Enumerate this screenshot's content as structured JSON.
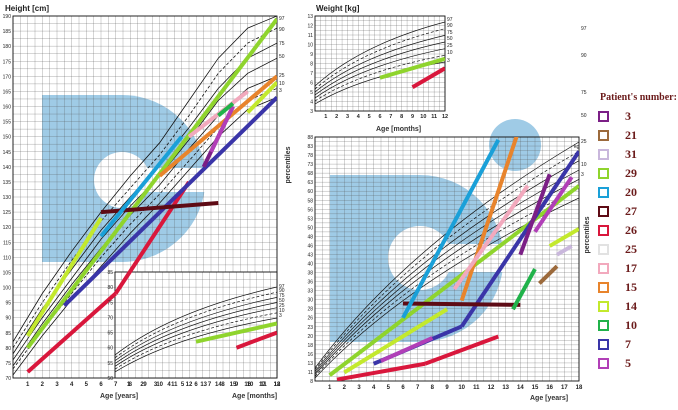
{
  "legend": {
    "title": "Patient's number:",
    "patients": [
      {
        "number": "3",
        "color": "#7b1f86"
      },
      {
        "number": "21",
        "color": "#9c6a3c"
      },
      {
        "number": "31",
        "color": "#c9b7dc"
      },
      {
        "number": "29",
        "color": "#8fd42d"
      },
      {
        "number": "20",
        "color": "#1aa0d8"
      },
      {
        "number": "27",
        "color": "#5e0b15"
      },
      {
        "number": "26",
        "color": "#d9173c"
      },
      {
        "number": "25",
        "color": "#e2e2e2"
      },
      {
        "number": "17",
        "color": "#f2a9bd"
      },
      {
        "number": "15",
        "color": "#e8842c"
      },
      {
        "number": "14",
        "color": "#c3e92d"
      },
      {
        "number": "10",
        "color": "#20b24a"
      },
      {
        "number": "7",
        "color": "#3a35a8"
      },
      {
        "number": "5",
        "color": "#b13fb7"
      }
    ]
  },
  "chart_data": [
    {
      "type": "line",
      "title": "Height [cm]",
      "xlabel": "Age [years]",
      "ylabel": "percentiles",
      "xlim": [
        0,
        18
      ],
      "ylim": [
        70,
        190
      ],
      "x_ticks": [
        1,
        2,
        3,
        4,
        5,
        6,
        7,
        8,
        9,
        10,
        11,
        12,
        13,
        14,
        15,
        16,
        17,
        18
      ],
      "y_ticks": [
        70,
        75,
        80,
        85,
        90,
        95,
        100,
        105,
        110,
        115,
        120,
        125,
        130,
        135,
        140,
        145,
        150,
        155,
        160,
        165,
        170,
        175,
        180,
        185,
        190
      ],
      "percentile_labels": [
        "97",
        "90",
        "75",
        "50",
        "25",
        "10",
        "3"
      ],
      "percentile_curves": [
        {
          "label": "97",
          "x": [
            0,
            2,
            4,
            6,
            8,
            10,
            12,
            14,
            16,
            18
          ],
          "y": [
            82,
            98,
            112,
            125,
            137,
            148,
            162,
            176,
            186,
            190
          ]
        },
        {
          "label": "90",
          "x": [
            0,
            2,
            4,
            6,
            8,
            10,
            12,
            14,
            16,
            18
          ],
          "y": [
            80,
            95,
            109,
            122,
            133,
            144,
            157,
            171,
            181,
            186
          ]
        },
        {
          "label": "75",
          "x": [
            0,
            2,
            4,
            6,
            8,
            10,
            12,
            14,
            16,
            18
          ],
          "y": [
            78,
            93,
            106,
            119,
            130,
            141,
            153,
            166,
            176,
            181
          ]
        },
        {
          "label": "50",
          "x": [
            0,
            2,
            4,
            6,
            8,
            10,
            12,
            14,
            16,
            18
          ],
          "y": [
            76,
            90,
            103,
            116,
            127,
            137,
            149,
            162,
            171,
            176
          ]
        },
        {
          "label": "25",
          "x": [
            0,
            2,
            4,
            6,
            8,
            10,
            12,
            14,
            16,
            18
          ],
          "y": [
            74,
            88,
            101,
            113,
            124,
            134,
            146,
            157,
            166,
            170
          ]
        },
        {
          "label": "10",
          "x": [
            0,
            2,
            4,
            6,
            8,
            10,
            12,
            14,
            16,
            18
          ],
          "y": [
            73,
            86,
            98,
            110,
            121,
            131,
            142,
            153,
            162,
            166
          ]
        },
        {
          "label": "3",
          "x": [
            0,
            2,
            4,
            6,
            8,
            10,
            12,
            14,
            16,
            18
          ],
          "y": [
            71,
            84,
            96,
            107,
            118,
            128,
            139,
            150,
            159,
            163
          ]
        }
      ],
      "series": [
        {
          "patient": "29",
          "color": "#8fd42d",
          "x": [
            1,
            18
          ],
          "y": [
            80,
            189
          ]
        },
        {
          "patient": "14",
          "color": "#c3e92d",
          "x": [
            1,
            6
          ],
          "y": [
            84,
            123
          ]
        },
        {
          "patient": "26",
          "color": "#d9173c",
          "x": [
            1,
            7
          ],
          "y": [
            72,
            98
          ]
        },
        {
          "patient": "26",
          "color": "#d9173c",
          "x": [
            7,
            12
          ],
          "y": [
            98,
            135
          ]
        },
        {
          "patient": "7",
          "color": "#3a35a8",
          "x": [
            3.5,
            18
          ],
          "y": [
            94,
            163
          ]
        },
        {
          "patient": "27",
          "color": "#5e0b15",
          "x": [
            6,
            14
          ],
          "y": [
            125,
            128
          ]
        },
        {
          "patient": "20",
          "color": "#1aa0d8",
          "x": [
            6,
            11.5
          ],
          "y": [
            117,
            150
          ]
        },
        {
          "patient": "15",
          "color": "#e8842c",
          "x": [
            10,
            18
          ],
          "y": [
            137,
            170
          ]
        },
        {
          "patient": "17",
          "color": "#f2a9bd",
          "x": [
            12,
            16
          ],
          "y": [
            150,
            165
          ]
        },
        {
          "patient": "3",
          "color": "#7b1f86",
          "x": [
            13,
            15
          ],
          "y": [
            140,
            160
          ]
        },
        {
          "patient": "5",
          "color": "#b13fb7",
          "x": [
            13.5,
            15
          ],
          "y": [
            145,
            160
          ]
        },
        {
          "patient": "10",
          "color": "#20b24a",
          "x": [
            14,
            15
          ],
          "y": [
            157,
            161
          ]
        },
        {
          "patient": "14",
          "color": "#c3e92d",
          "x": [
            16,
            18
          ],
          "y": [
            158,
            168
          ]
        }
      ]
    },
    {
      "type": "line",
      "title": "",
      "xlabel": "Age [months]",
      "xlim": [
        0,
        12
      ],
      "ylim": [
        50,
        85
      ],
      "x_ticks": [
        1,
        2,
        3,
        4,
        5,
        6,
        7,
        8,
        9,
        10,
        11,
        12
      ],
      "y_ticks": [
        50,
        55,
        60,
        65,
        70,
        75,
        80,
        85
      ],
      "percentile_labels": [
        "97",
        "90",
        "75",
        "50",
        "25",
        "10",
        "3"
      ],
      "series": [
        {
          "patient": "29",
          "color": "#8fd42d",
          "x": [
            6,
            12
          ],
          "y": [
            62,
            68
          ]
        },
        {
          "patient": "26",
          "color": "#d9173c",
          "x": [
            9,
            12
          ],
          "y": [
            60,
            65
          ]
        }
      ]
    },
    {
      "type": "line",
      "title": "Weight [kg]",
      "xlabel": "Age [months]",
      "xlim": [
        0,
        12
      ],
      "ylim": [
        3,
        13
      ],
      "x_ticks": [
        1,
        2,
        3,
        4,
        5,
        6,
        7,
        8,
        9,
        10,
        11,
        12
      ],
      "y_ticks": [
        3,
        4,
        5,
        6,
        7,
        8,
        9,
        10,
        11,
        12,
        13
      ],
      "percentile_labels": [
        "97",
        "90",
        "75",
        "50",
        "25",
        "10",
        "3"
      ],
      "series": [
        {
          "patient": "29",
          "color": "#8fd42d",
          "x": [
            6,
            12
          ],
          "y": [
            6.5,
            8.5
          ]
        },
        {
          "patient": "26",
          "color": "#d9173c",
          "x": [
            9,
            12
          ],
          "y": [
            5.5,
            7.5
          ]
        }
      ]
    },
    {
      "type": "line",
      "title": "",
      "xlabel": "Age [years]",
      "ylabel": "percentiles",
      "xlim": [
        0,
        18
      ],
      "ylim": [
        8,
        93
      ],
      "unit": "kg",
      "x_ticks": [
        1,
        2,
        3,
        4,
        5,
        6,
        7,
        8,
        9,
        10,
        11,
        12,
        13,
        14,
        15,
        16,
        17,
        18
      ],
      "y_ticks": [
        8,
        11,
        13,
        16,
        18,
        20,
        23,
        26,
        28,
        30,
        33,
        36,
        38,
        40,
        43,
        46,
        48,
        50,
        53,
        56,
        58,
        60,
        63,
        68,
        73,
        78,
        83,
        88
      ],
      "y_tick_labels": [
        "8",
        "11",
        "13",
        "16",
        "18",
        "20",
        "23",
        "26",
        "28",
        "30",
        "33",
        "36",
        "38",
        "40",
        "43",
        "46",
        "48",
        "50",
        "53",
        "56",
        "58",
        "60",
        "63",
        "68",
        "73",
        "78",
        "83",
        "88"
      ],
      "percentile_labels": [
        "97",
        "90",
        "75",
        "50",
        "25",
        "10",
        "3"
      ],
      "series": [
        {
          "patient": "26",
          "color": "#d9173c",
          "x": [
            1.5,
            7.5
          ],
          "y": [
            8.5,
            14
          ]
        },
        {
          "patient": "26",
          "color": "#d9173c",
          "x": [
            7.5,
            12.5
          ],
          "y": [
            14,
            23.5
          ]
        },
        {
          "patient": "29",
          "color": "#8fd42d",
          "x": [
            1,
            18
          ],
          "y": [
            10,
            76
          ]
        },
        {
          "patient": "14",
          "color": "#c3e92d",
          "x": [
            2,
            9
          ],
          "y": [
            11,
            33
          ]
        },
        {
          "patient": "7",
          "color": "#3a35a8",
          "x": [
            4,
            10
          ],
          "y": [
            14,
            27
          ]
        },
        {
          "patient": "7",
          "color": "#3a35a8",
          "x": [
            10,
            18
          ],
          "y": [
            27,
            88
          ]
        },
        {
          "patient": "5",
          "color": "#b13fb7",
          "x": [
            4.5,
            8
          ],
          "y": [
            15,
            23
          ]
        },
        {
          "patient": "27",
          "color": "#5e0b15",
          "x": [
            6,
            14
          ],
          "y": [
            35,
            34.5
          ]
        },
        {
          "patient": "20",
          "color": "#1aa0d8",
          "x": [
            6,
            12.5
          ],
          "y": [
            30,
            92
          ]
        },
        {
          "patient": "15",
          "color": "#e8842c",
          "x": [
            10,
            15.5
          ],
          "y": [
            36,
            120
          ]
        },
        {
          "patient": "17",
          "color": "#f2a9bd",
          "x": [
            9.5,
            14.5
          ],
          "y": [
            40,
            76
          ]
        },
        {
          "patient": "3",
          "color": "#7b1f86",
          "x": [
            14,
            16
          ],
          "y": [
            52,
            80
          ]
        },
        {
          "patient": "5",
          "color": "#b13fb7",
          "x": [
            15,
            17.5
          ],
          "y": [
            60,
            79
          ]
        },
        {
          "patient": "10",
          "color": "#20b24a",
          "x": [
            13.5,
            15
          ],
          "y": [
            33,
            47
          ]
        },
        {
          "patient": "21",
          "color": "#9c6a3c",
          "x": [
            15.3,
            16.5
          ],
          "y": [
            42,
            48
          ]
        },
        {
          "patient": "31",
          "color": "#c9b7dc",
          "x": [
            16.5,
            17.5
          ],
          "y": [
            52,
            55
          ]
        },
        {
          "patient": "14",
          "color": "#c3e92d",
          "x": [
            16,
            18
          ],
          "y": [
            55,
            61
          ]
        }
      ]
    }
  ]
}
